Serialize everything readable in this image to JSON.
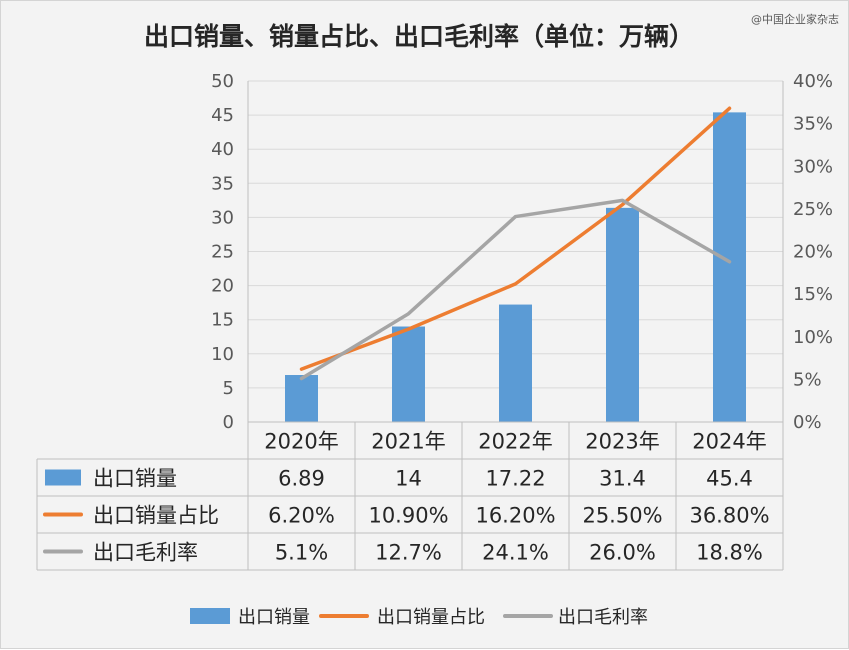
{
  "chart_data": {
    "type": "bar",
    "title": "出口销量、销量占比、出口毛利率（单位：万辆）",
    "watermark": "@中国企业家杂志",
    "categories": [
      "2020年",
      "2021年",
      "2022年",
      "2023年",
      "2024年"
    ],
    "y_left": {
      "ylim": [
        0,
        50
      ],
      "ticks": [
        "0",
        "5",
        "10",
        "15",
        "20",
        "25",
        "30",
        "35",
        "40",
        "45",
        "50"
      ]
    },
    "y_right": {
      "ylim": [
        0,
        0.4
      ],
      "ticks": [
        "0%",
        "5%",
        "10%",
        "15%",
        "20%",
        "25%",
        "30%",
        "35%",
        "40%"
      ]
    },
    "grid": true,
    "legend_position": "bottom",
    "series": [
      {
        "name": "出口销量",
        "type": "bar",
        "axis": "left",
        "color": "#5b9bd5",
        "values": [
          6.89,
          14,
          17.22,
          31.4,
          45.4
        ],
        "labels": [
          "6.89",
          "14",
          "17.22",
          "31.4",
          "45.4"
        ]
      },
      {
        "name": "出口销量占比",
        "type": "line",
        "axis": "right",
        "color": "#ed7d31",
        "values": [
          0.062,
          0.109,
          0.162,
          0.255,
          0.368
        ],
        "labels": [
          "6.20%",
          "10.90%",
          "16.20%",
          "25.50%",
          "36.80%"
        ]
      },
      {
        "name": "出口毛利率",
        "type": "line",
        "axis": "right",
        "color": "#a5a5a5",
        "values": [
          0.051,
          0.127,
          0.241,
          0.26,
          0.188
        ],
        "labels": [
          "5.1%",
          "12.7%",
          "24.1%",
          "26.0%",
          "18.8%"
        ]
      }
    ]
  }
}
